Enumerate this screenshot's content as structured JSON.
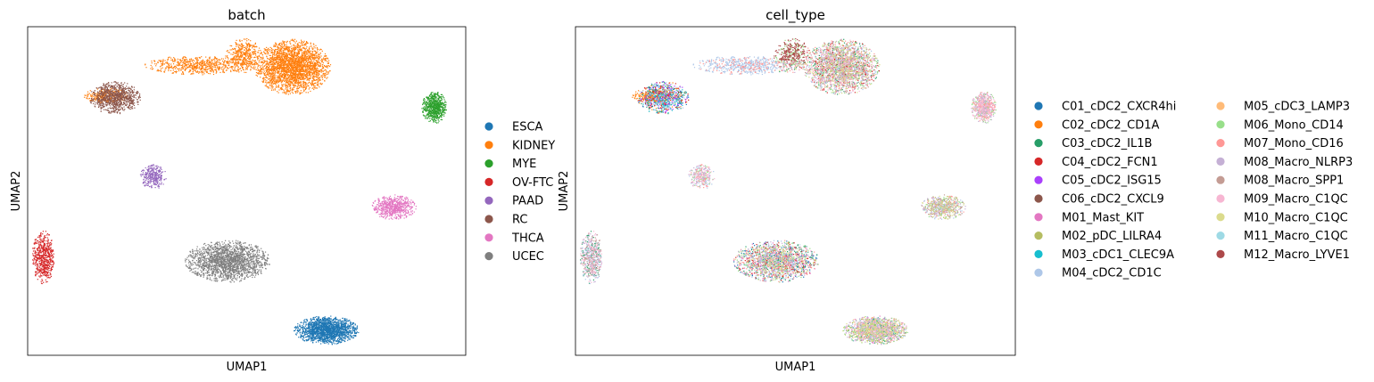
{
  "chart_data": [
    {
      "type": "scatter",
      "title": "batch",
      "xlabel": "UMAP1",
      "ylabel": "UMAP2",
      "grid": false,
      "legend_position": "right",
      "series": [
        {
          "name": "ESCA",
          "color": "#1f77b4",
          "clusters": [
            {
              "cx": 6.3,
              "cy": -7.2,
              "rx": 1.45,
              "ry": 0.75,
              "n": 1700
            }
          ]
        },
        {
          "name": "KIDNEY",
          "color": "#ff7f0e",
          "clusters": [
            {
              "cx": 4.8,
              "cy": 6.5,
              "rx": 1.7,
              "ry": 1.45,
              "n": 2600
            },
            {
              "cx": 0.6,
              "cy": 6.6,
              "rx": 2.4,
              "ry": 0.5,
              "n": 650
            },
            {
              "cx": 2.6,
              "cy": 7.1,
              "rx": 0.8,
              "ry": 0.9,
              "n": 420
            },
            {
              "cx": -3.5,
              "cy": 5.0,
              "rx": 1.0,
              "ry": 0.4,
              "n": 260
            }
          ]
        },
        {
          "name": "MYE",
          "color": "#2ca02c",
          "clusters": [
            {
              "cx": 11.1,
              "cy": 4.4,
              "rx": 0.55,
              "ry": 0.85,
              "n": 650
            }
          ]
        },
        {
          "name": "OV-FTC",
          "color": "#d62728",
          "clusters": [
            {
              "cx": -6.3,
              "cy": -3.4,
              "rx": 0.5,
              "ry": 1.4,
              "n": 600
            }
          ]
        },
        {
          "name": "PAAD",
          "color": "#9467bd",
          "clusters": [
            {
              "cx": -1.4,
              "cy": 0.8,
              "rx": 0.6,
              "ry": 0.65,
              "n": 320
            }
          ]
        },
        {
          "name": "RC",
          "color": "#8c564b",
          "clusters": [
            {
              "cx": -3.1,
              "cy": 4.9,
              "rx": 1.15,
              "ry": 0.85,
              "n": 900
            }
          ]
        },
        {
          "name": "THCA",
          "color": "#e377c2",
          "clusters": [
            {
              "cx": 9.3,
              "cy": -0.8,
              "rx": 1.0,
              "ry": 0.65,
              "n": 650
            }
          ]
        },
        {
          "name": "UCEC",
          "color": "#7f7f7f",
          "clusters": [
            {
              "cx": 1.9,
              "cy": -3.6,
              "rx": 1.9,
              "ry": 1.1,
              "n": 1900
            }
          ]
        }
      ]
    },
    {
      "type": "scatter",
      "title": "cell_type",
      "xlabel": "UMAP1",
      "ylabel": "UMAP2",
      "grid": false,
      "legend_position": "right",
      "series": [
        {
          "name": "C01_cDC2_CXCR4hi",
          "color": "#1f77b4"
        },
        {
          "name": "C02_cDC2_CD1A",
          "color": "#ff7f0e"
        },
        {
          "name": "C03_cDC2_IL1B",
          "color": "#279e68"
        },
        {
          "name": "C04_cDC2_FCN1",
          "color": "#d62728"
        },
        {
          "name": "C05_cDC2_ISG15",
          "color": "#aa40fc"
        },
        {
          "name": "C06_cDC2_CXCL9",
          "color": "#8c564b"
        },
        {
          "name": "M01_Mast_KIT",
          "color": "#e377c2"
        },
        {
          "name": "M02_pDC_LILRA4",
          "color": "#b5bd61"
        },
        {
          "name": "M03_cDC1_CLEC9A",
          "color": "#17becf"
        },
        {
          "name": "M04_cDC2_CD1C",
          "color": "#aec7e8"
        },
        {
          "name": "M05_cDC3_LAMP3",
          "color": "#ffbb78"
        },
        {
          "name": "M06_Mono_CD14",
          "color": "#98df8a"
        },
        {
          "name": "M07_Mono_CD16",
          "color": "#ff9896"
        },
        {
          "name": "M08_Macro_NLRP3",
          "color": "#c5b0d5"
        },
        {
          "name": "M08_Macro_SPP1",
          "color": "#c49c94"
        },
        {
          "name": "M09_Macro_C1QC",
          "color": "#f7b6d2"
        },
        {
          "name": "M10_Macro_C1QC",
          "color": "#dbdb8d"
        },
        {
          "name": "M11_Macro_C1QC",
          "color": "#9edae5"
        },
        {
          "name": "M12_Macro_LYVE1",
          "color": "#ad494a"
        }
      ]
    }
  ]
}
